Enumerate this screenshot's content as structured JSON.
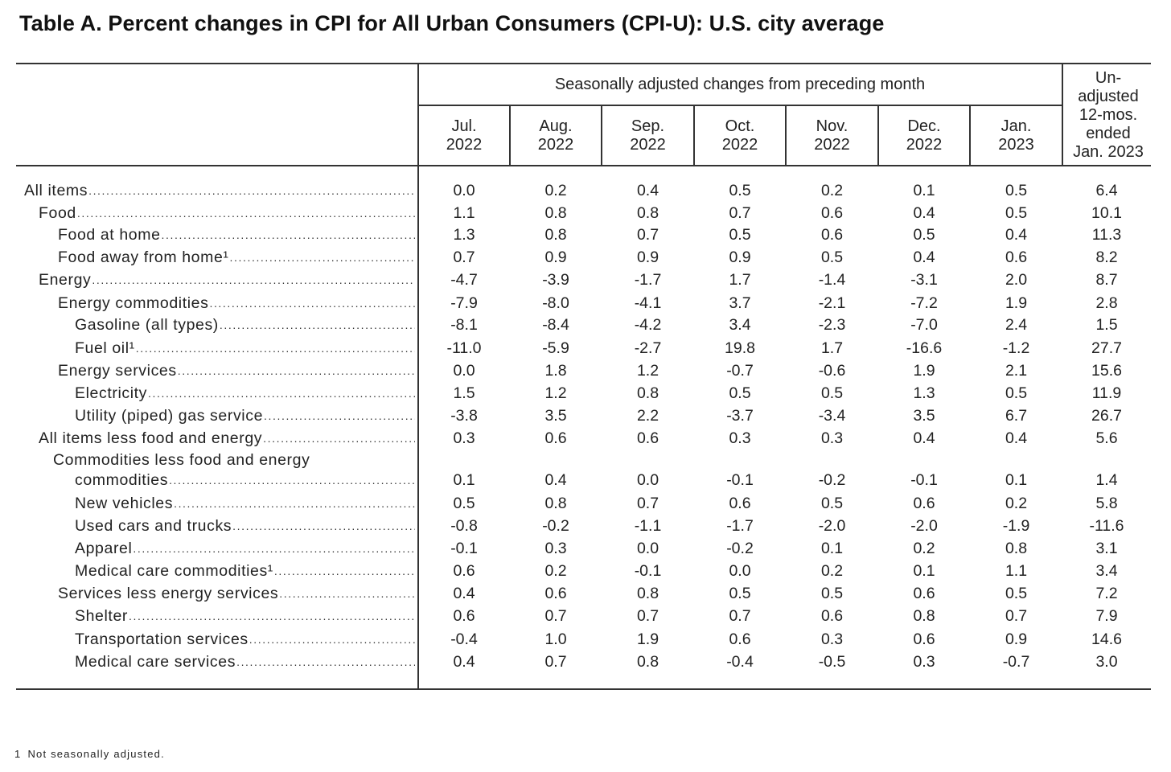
{
  "title": "Table A. Percent changes in CPI for All Urban Consumers (CPI-U): U.S. city average",
  "header": {
    "group_label": "Seasonally adjusted changes from preceding month",
    "months": [
      {
        "l1": "Jul.",
        "l2": "2022"
      },
      {
        "l1": "Aug.",
        "l2": "2022"
      },
      {
        "l1": "Sep.",
        "l2": "2022"
      },
      {
        "l1": "Oct.",
        "l2": "2022"
      },
      {
        "l1": "Nov.",
        "l2": "2022"
      },
      {
        "l1": "Dec.",
        "l2": "2022"
      },
      {
        "l1": "Jan.",
        "l2": "2023"
      }
    ],
    "unadjusted": [
      "Un-",
      "adjusted",
      "12-mos.",
      "ended",
      "Jan. 2023"
    ]
  },
  "rows": [
    {
      "label": "All items",
      "indent": 0,
      "values": [
        "0.0",
        "0.2",
        "0.4",
        "0.5",
        "0.2",
        "0.1",
        "0.5",
        "6.4"
      ]
    },
    {
      "label": "Food",
      "indent": 1,
      "values": [
        "1.1",
        "0.8",
        "0.8",
        "0.7",
        "0.6",
        "0.4",
        "0.5",
        "10.1"
      ]
    },
    {
      "label": "Food at home",
      "indent": 2,
      "values": [
        "1.3",
        "0.8",
        "0.7",
        "0.5",
        "0.6",
        "0.5",
        "0.4",
        "11.3"
      ]
    },
    {
      "label": "Food away from home¹",
      "indent": 2,
      "values": [
        "0.7",
        "0.9",
        "0.9",
        "0.9",
        "0.5",
        "0.4",
        "0.6",
        "8.2"
      ]
    },
    {
      "label": "Energy",
      "indent": 1,
      "values": [
        "-4.7",
        "-3.9",
        "-1.7",
        "1.7",
        "-1.4",
        "-3.1",
        "2.0",
        "8.7"
      ]
    },
    {
      "label": "Energy commodities",
      "indent": 2,
      "values": [
        "-7.9",
        "-8.0",
        "-4.1",
        "3.7",
        "-2.1",
        "-7.2",
        "1.9",
        "2.8"
      ]
    },
    {
      "label": "Gasoline (all types)",
      "indent": 3,
      "values": [
        "-8.1",
        "-8.4",
        "-4.2",
        "3.4",
        "-2.3",
        "-7.0",
        "2.4",
        "1.5"
      ]
    },
    {
      "label": "Fuel oil¹",
      "indent": 3,
      "values": [
        "-11.0",
        "-5.9",
        "-2.7",
        "19.8",
        "1.7",
        "-16.6",
        "-1.2",
        "27.7"
      ]
    },
    {
      "label": "Energy services",
      "indent": 2,
      "values": [
        "0.0",
        "1.8",
        "1.2",
        "-0.7",
        "-0.6",
        "1.9",
        "2.1",
        "15.6"
      ]
    },
    {
      "label": "Electricity",
      "indent": 3,
      "values": [
        "1.5",
        "1.2",
        "0.8",
        "0.5",
        "0.5",
        "1.3",
        "0.5",
        "11.9"
      ]
    },
    {
      "label": "Utility (piped) gas service",
      "indent": 3,
      "values": [
        "-3.8",
        "3.5",
        "2.2",
        "-3.7",
        "-3.4",
        "3.5",
        "6.7",
        "26.7"
      ]
    },
    {
      "label": "All items less food and energy",
      "indent": 1,
      "values": [
        "0.3",
        "0.6",
        "0.6",
        "0.3",
        "0.3",
        "0.4",
        "0.4",
        "5.6"
      ]
    },
    {
      "label_prefix": "Commodities less food and energy",
      "label": "commodities",
      "indent": 3,
      "values": [
        "0.1",
        "0.4",
        "0.0",
        "-0.1",
        "-0.2",
        "-0.1",
        "0.1",
        "1.4"
      ]
    },
    {
      "label": "New vehicles",
      "indent": 3,
      "values": [
        "0.5",
        "0.8",
        "0.7",
        "0.6",
        "0.5",
        "0.6",
        "0.2",
        "5.8"
      ]
    },
    {
      "label": "Used cars and trucks",
      "indent": 3,
      "values": [
        "-0.8",
        "-0.2",
        "-1.1",
        "-1.7",
        "-2.0",
        "-2.0",
        "-1.9",
        "-11.6"
      ]
    },
    {
      "label": "Apparel",
      "indent": 3,
      "values": [
        "-0.1",
        "0.3",
        "0.0",
        "-0.2",
        "0.1",
        "0.2",
        "0.8",
        "3.1"
      ]
    },
    {
      "label": "Medical care commodities¹",
      "indent": 3,
      "values": [
        "0.6",
        "0.2",
        "-0.1",
        "0.0",
        "0.2",
        "0.1",
        "1.1",
        "3.4"
      ]
    },
    {
      "label": "Services less energy services",
      "indent": 2,
      "values": [
        "0.4",
        "0.6",
        "0.8",
        "0.5",
        "0.5",
        "0.6",
        "0.5",
        "7.2"
      ]
    },
    {
      "label": "Shelter",
      "indent": 3,
      "values": [
        "0.6",
        "0.7",
        "0.7",
        "0.7",
        "0.6",
        "0.8",
        "0.7",
        "7.9"
      ]
    },
    {
      "label": "Transportation services",
      "indent": 3,
      "values": [
        "-0.4",
        "1.0",
        "1.9",
        "0.6",
        "0.3",
        "0.6",
        "0.9",
        "14.6"
      ]
    },
    {
      "label": "Medical care services",
      "indent": 3,
      "values": [
        "0.4",
        "0.7",
        "0.8",
        "-0.4",
        "-0.5",
        "0.3",
        "-0.7",
        "3.0"
      ]
    }
  ],
  "footnote": {
    "marker": "1",
    "text": "Not seasonally adjusted."
  }
}
